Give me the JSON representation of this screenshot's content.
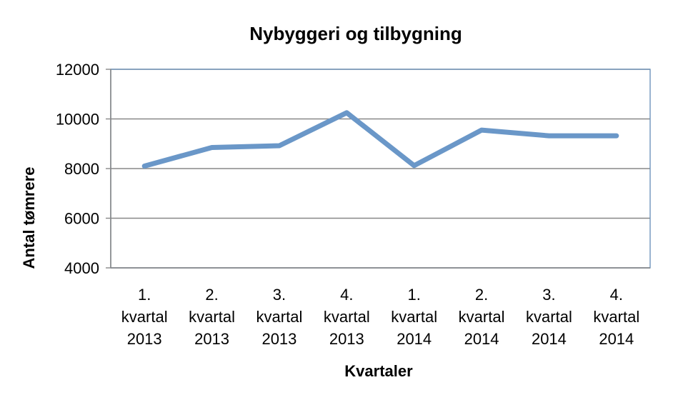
{
  "chart_data": {
    "type": "line",
    "title": "Nybyggeri og tilbygning",
    "xlabel": "Kvartaler",
    "ylabel": "Antal tømrere",
    "categories": [
      [
        "1.",
        "kvartal",
        "2013"
      ],
      [
        "2.",
        "kvartal",
        "2013"
      ],
      [
        "3.",
        "kvartal",
        "2013"
      ],
      [
        "4.",
        "kvartal",
        "2013"
      ],
      [
        "1.",
        "kvartal",
        "2014"
      ],
      [
        "2.",
        "kvartal",
        "2014"
      ],
      [
        "3.",
        "kvartal",
        "2014"
      ],
      [
        "4.",
        "kvartal",
        "2014"
      ]
    ],
    "series": [
      {
        "values": [
          8100,
          8850,
          8920,
          10250,
          8120,
          9550,
          9320,
          9320
        ],
        "color": "#6a97c8"
      }
    ],
    "ylim": [
      4000,
      12000
    ],
    "yticks": [
      12000,
      10000,
      8000,
      6000,
      4000
    ],
    "grid": true,
    "legend": "none",
    "colors": {
      "grid": "#888888",
      "axis": "#888888",
      "plot_border": "#6f95bc"
    }
  }
}
